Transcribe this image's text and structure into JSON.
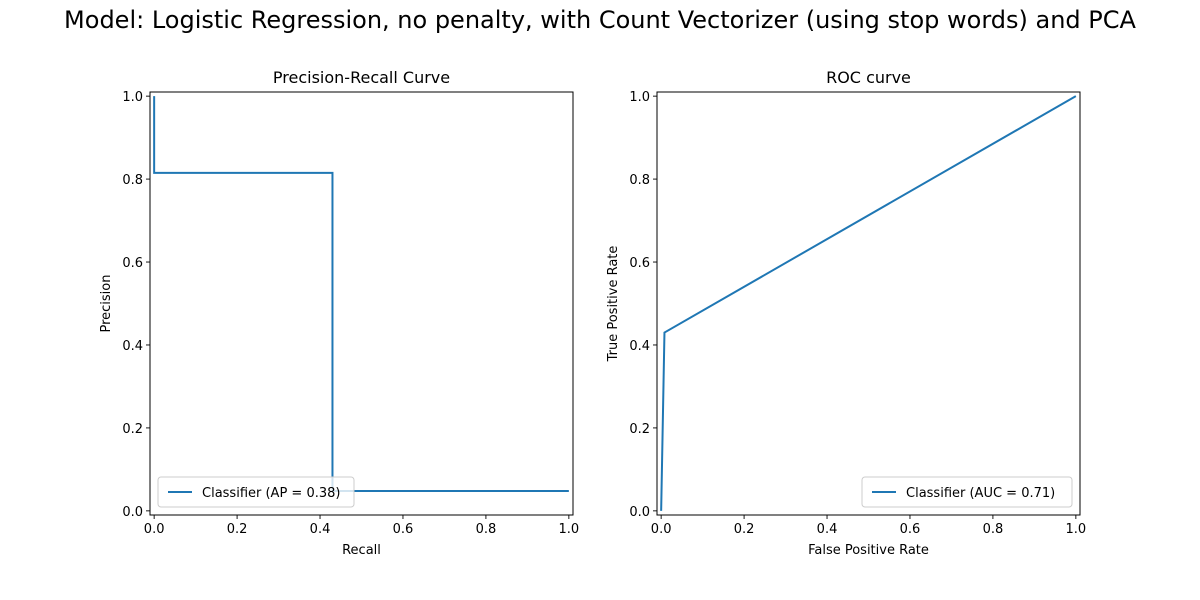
{
  "suptitle": "Model: Logistic Regression, no penalty, with Count Vectorizer (using stop words) and PCA",
  "chart_data": [
    {
      "type": "line",
      "title": "Precision-Recall Curve",
      "xlabel": "Recall",
      "ylabel": "Precision",
      "xlim": [
        -0.01,
        1.01
      ],
      "ylim": [
        -0.01,
        1.01
      ],
      "xticks": [
        "0.0",
        "0.2",
        "0.4",
        "0.6",
        "0.8",
        "1.0"
      ],
      "yticks": [
        "0.0",
        "0.2",
        "0.4",
        "0.6",
        "0.8",
        "1.0"
      ],
      "grid": false,
      "legend_position": "lower-left",
      "color": "#1f77b4",
      "series": [
        {
          "name": "Classifier (AP = 0.38)",
          "x": [
            0.0,
            0.0,
            0.43,
            0.43,
            1.0
          ],
          "y": [
            1.0,
            0.815,
            0.815,
            0.048,
            0.048
          ]
        }
      ]
    },
    {
      "type": "line",
      "title": "ROC curve",
      "xlabel": "False Positive Rate",
      "ylabel": "True Positive Rate",
      "xlim": [
        -0.01,
        1.01
      ],
      "ylim": [
        -0.01,
        1.01
      ],
      "xticks": [
        "0.0",
        "0.2",
        "0.4",
        "0.6",
        "0.8",
        "1.0"
      ],
      "yticks": [
        "0.0",
        "0.2",
        "0.4",
        "0.6",
        "0.8",
        "1.0"
      ],
      "grid": false,
      "legend_position": "lower-right",
      "color": "#1f77b4",
      "series": [
        {
          "name": "Classifier (AUC = 0.71)",
          "x": [
            0.0,
            0.0,
            0.008,
            1.0
          ],
          "y": [
            0.0,
            0.0,
            0.43,
            1.0
          ]
        }
      ]
    }
  ]
}
